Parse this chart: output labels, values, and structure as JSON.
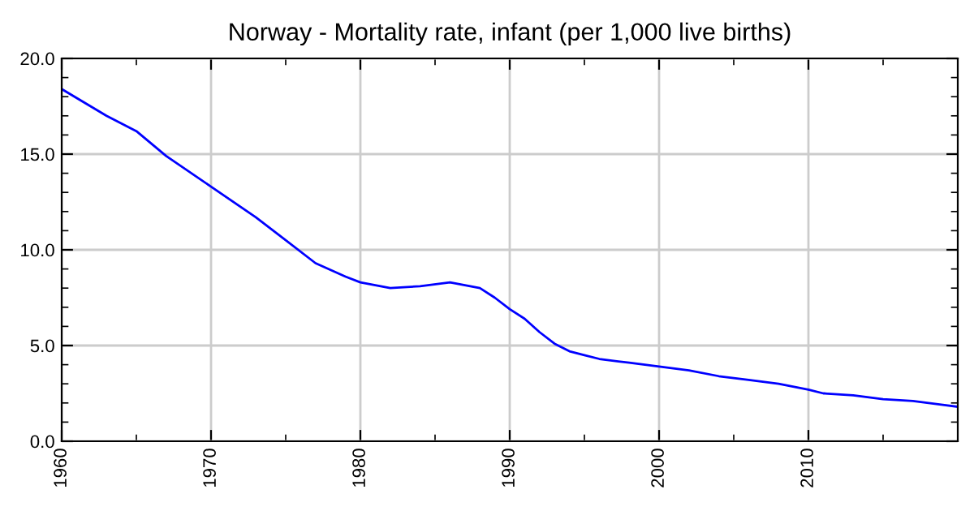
{
  "chart_data": {
    "type": "line",
    "title": "Norway - Mortality rate, infant (per 1,000 live births)",
    "x": [
      1960,
      1963,
      1965,
      1967,
      1970,
      1973,
      1975,
      1977,
      1979,
      1980,
      1982,
      1984,
      1986,
      1988,
      1989,
      1990,
      1991,
      1992,
      1993,
      1994,
      1995,
      1996,
      1998,
      2000,
      2002,
      2004,
      2006,
      2008,
      2010,
      2011,
      2013,
      2015,
      2017,
      2019,
      2020
    ],
    "series": [
      {
        "color": "#0000ff",
        "values": [
          18.4,
          17.0,
          16.2,
          14.9,
          13.3,
          11.7,
          10.5,
          9.3,
          8.6,
          8.3,
          8.0,
          8.1,
          8.3,
          8.0,
          7.5,
          6.9,
          6.4,
          5.7,
          5.1,
          4.7,
          4.5,
          4.3,
          4.1,
          3.9,
          3.7,
          3.4,
          3.2,
          3.0,
          2.7,
          2.5,
          2.4,
          2.2,
          2.1,
          1.9,
          1.8
        ]
      }
    ],
    "xlim": [
      1960,
      2020
    ],
    "xticks": [
      1960,
      1970,
      1980,
      1990,
      2000,
      2010
    ],
    "ylim": [
      0,
      20
    ],
    "yticks": [
      {
        "value": 0,
        "label": "0.0"
      },
      {
        "value": 5,
        "label": "5.0"
      },
      {
        "value": 10,
        "label": "10.0"
      },
      {
        "value": 15,
        "label": "15.0"
      },
      {
        "value": 20,
        "label": "20.0"
      }
    ],
    "grid": true,
    "marker": "none",
    "line_style": "solid"
  }
}
